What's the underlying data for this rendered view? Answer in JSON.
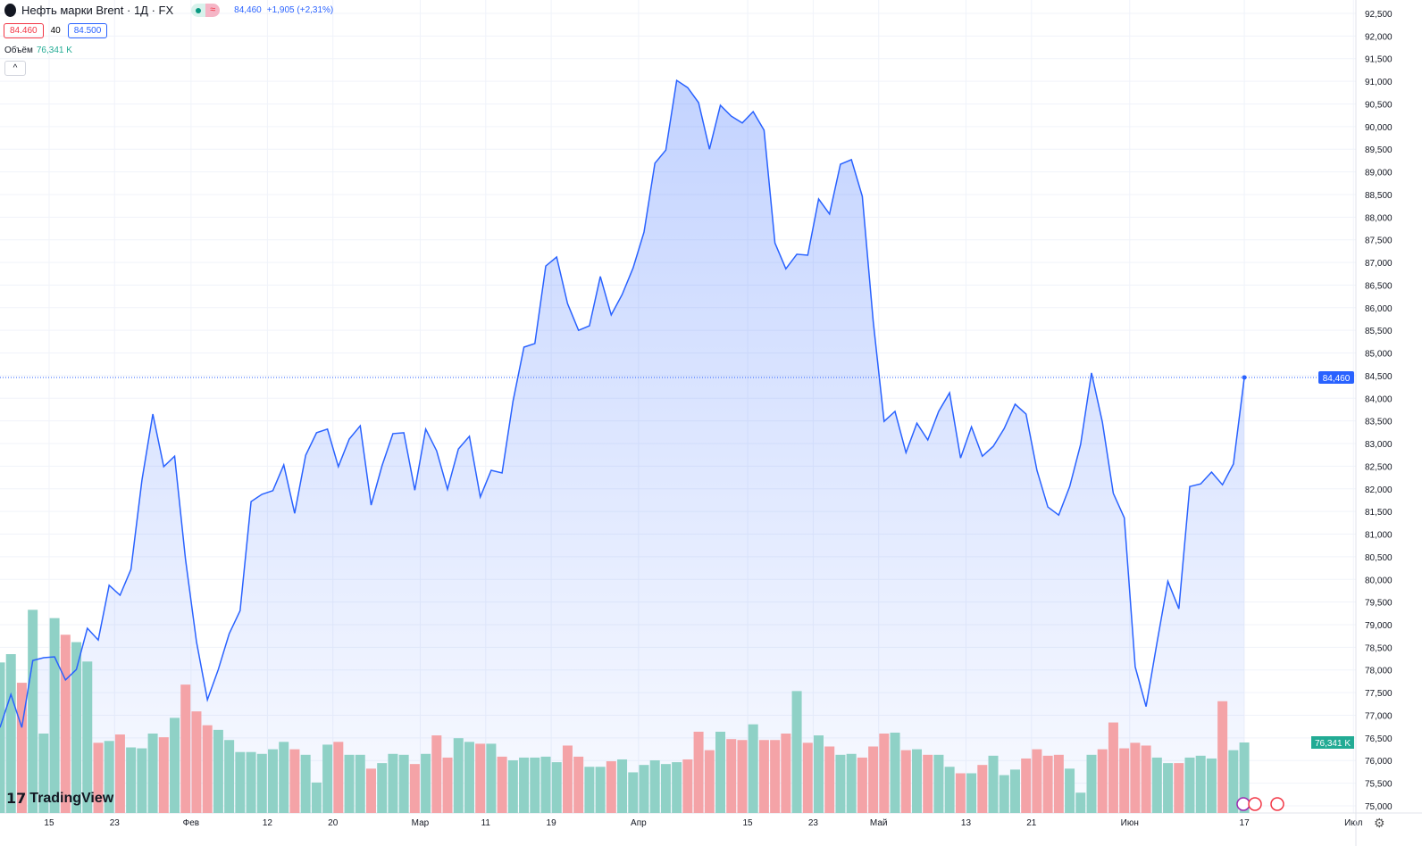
{
  "header": {
    "title": "Нефть марки Brent · 1Д · FX",
    "last": "84,460",
    "change": "+1,905 (+2,31%)",
    "sell": "84.460",
    "spread": "40",
    "buy": "84.500",
    "status_icon": "market-open-dot",
    "realtime_icon": "approx-icon"
  },
  "volume": {
    "label": "Объём",
    "value": "76,341 K"
  },
  "collapse_label": "^",
  "logo": "TradingView",
  "colors": {
    "line": "#2962ff",
    "up": "#22ab94",
    "down": "#f23645",
    "up_vol": "#8fd1c6",
    "down_vol": "#f4a3a7"
  },
  "chart_data": {
    "type": "area",
    "price_axis": [
      "92,500",
      "92,000",
      "91,500",
      "91,000",
      "90,500",
      "90,000",
      "89,500",
      "89,000",
      "88,500",
      "88,000",
      "87,500",
      "87,000",
      "86,500",
      "86,000",
      "85,500",
      "85,000",
      "84,500",
      "84,000",
      "83,500",
      "83,000",
      "82,500",
      "82,000",
      "81,500",
      "81,000",
      "80,500",
      "80,000",
      "79,500",
      "79,000",
      "78,500",
      "78,000",
      "77,500",
      "77,000",
      "76,500",
      "76,000",
      "75,500",
      "75,000"
    ],
    "ylim": [
      75.0,
      92.5
    ],
    "last_price_label": "84,460",
    "last_volume_label": "76,341 K",
    "x_ticks": [
      {
        "i": 4.5,
        "label": "15"
      },
      {
        "i": 10.5,
        "label": "23"
      },
      {
        "i": 17.5,
        "label": "Фев"
      },
      {
        "i": 24.5,
        "label": "12"
      },
      {
        "i": 30.5,
        "label": "20"
      },
      {
        "i": 38.5,
        "label": "Мар"
      },
      {
        "i": 44.5,
        "label": "11"
      },
      {
        "i": 50.5,
        "label": "19"
      },
      {
        "i": 58.5,
        "label": "Апр"
      },
      {
        "i": 68.5,
        "label": "15"
      },
      {
        "i": 74.5,
        "label": "23"
      },
      {
        "i": 80.5,
        "label": "Май"
      },
      {
        "i": 88.5,
        "label": "13"
      },
      {
        "i": 94.5,
        "label": "21"
      },
      {
        "i": 103.5,
        "label": "Июн"
      },
      {
        "i": 114,
        "label": "17"
      },
      {
        "i": 124,
        "label": "Июл"
      }
    ],
    "close": [
      76.73,
      77.46,
      76.73,
      78.21,
      78.27,
      78.29,
      77.78,
      78.01,
      78.92,
      78.66,
      79.87,
      79.65,
      80.22,
      82.19,
      83.65,
      82.49,
      82.72,
      80.44,
      78.62,
      77.34,
      78.01,
      78.8,
      79.31,
      81.72,
      81.88,
      81.96,
      82.53,
      81.46,
      82.74,
      83.24,
      83.32,
      82.49,
      83.1,
      83.39,
      81.64,
      82.51,
      83.22,
      83.24,
      81.97,
      83.32,
      82.84,
      81.99,
      82.88,
      83.16,
      81.82,
      82.41,
      82.35,
      83.93,
      85.13,
      85.21,
      86.92,
      87.12,
      86.09,
      85.5,
      85.6,
      86.69,
      85.84,
      86.29,
      86.88,
      87.67,
      89.19,
      89.48,
      91.02,
      90.86,
      90.53,
      89.5,
      90.47,
      90.23,
      90.08,
      90.33,
      89.92,
      87.43,
      86.86,
      87.18,
      87.16,
      88.4,
      88.07,
      89.17,
      89.27,
      88.46,
      85.7,
      83.49,
      83.71,
      82.8,
      83.45,
      83.08,
      83.71,
      84.12,
      82.68,
      83.37,
      82.72,
      82.94,
      83.33,
      83.87,
      83.65,
      82.41,
      81.6,
      81.42,
      82.05,
      82.98,
      84.56,
      83.47,
      81.9,
      81.36,
      78.07,
      77.19,
      78.6,
      79.96,
      79.35,
      82.05,
      82.11,
      82.37,
      82.09,
      82.55,
      84.46
    ],
    "volume_k": [
      163,
      172,
      141,
      220,
      86,
      211,
      193,
      185,
      164,
      76,
      78,
      85,
      71,
      70,
      86,
      82,
      103,
      139,
      110,
      95,
      90,
      79,
      66,
      66,
      64,
      69,
      77,
      69,
      63,
      33,
      74,
      77,
      63,
      63,
      48,
      54,
      64,
      63,
      53,
      64,
      84,
      60,
      81,
      77,
      75,
      75,
      61,
      57,
      60,
      60,
      61,
      55,
      73,
      61,
      50,
      50,
      56,
      58,
      44,
      52,
      57,
      53,
      55,
      58,
      88,
      68,
      88,
      80,
      79,
      96,
      79,
      79,
      86,
      132,
      76,
      84,
      72,
      63,
      64,
      60,
      72,
      86,
      87,
      68,
      69,
      63,
      63,
      50,
      43,
      43,
      52,
      62,
      41,
      47,
      59,
      69,
      62,
      63,
      48,
      22,
      63,
      69,
      98,
      70,
      76,
      73,
      60,
      54,
      54,
      60,
      62,
      59,
      121,
      68,
      76.341
    ]
  }
}
